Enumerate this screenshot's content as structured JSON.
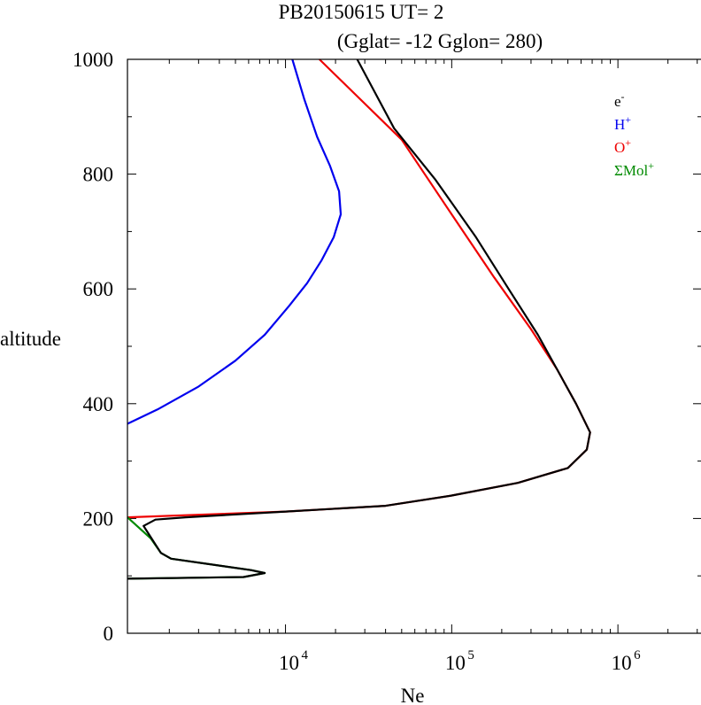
{
  "chart_data": {
    "type": "line",
    "title": "PB20150615   UT=  2",
    "subtitle": "(Gglat= -12   Gglon=  280)",
    "xlabel": "Ne",
    "ylabel": "altitude",
    "x_scale": "log",
    "xlim": [
      1120,
      3200000
    ],
    "ylim": [
      0,
      1000
    ],
    "y_ticks": [
      0,
      200,
      400,
      600,
      800,
      1000
    ],
    "y_tick_labels": [
      "0",
      "200",
      "400",
      "600",
      "800",
      "1000"
    ],
    "x_ticks": [
      10000,
      100000,
      1000000
    ],
    "x_tick_labels": [
      {
        "base": "10",
        "exp": "4"
      },
      {
        "base": "10",
        "exp": "5"
      },
      {
        "base": "10",
        "exp": "6"
      }
    ],
    "legend": {
      "placement": "top-right",
      "entries": [
        {
          "base": "e",
          "sup": "-",
          "color": "#000000"
        },
        {
          "base": "H",
          "sup": "+",
          "color": "#0000ee"
        },
        {
          "base": "O",
          "sup": "+",
          "color": "#ee0000"
        },
        {
          "base": "ΣMol",
          "sup": "+",
          "color": "#008a00"
        }
      ]
    },
    "series": [
      {
        "key": "H+",
        "color": "#0000ee",
        "points": [
          [
            1120,
            365
          ],
          [
            1700,
            390
          ],
          [
            3000,
            430
          ],
          [
            5000,
            475
          ],
          [
            7500,
            520
          ],
          [
            10500,
            570
          ],
          [
            13500,
            610
          ],
          [
            16500,
            650
          ],
          [
            19500,
            690
          ],
          [
            21500,
            730
          ],
          [
            21000,
            770
          ],
          [
            18500,
            815
          ],
          [
            15500,
            865
          ],
          [
            13000,
            930
          ],
          [
            11000,
            1000
          ]
        ]
      },
      {
        "key": "O+",
        "color": "#ee0000",
        "points": [
          [
            1120,
            202
          ],
          [
            10000,
            212
          ],
          [
            40000,
            222
          ],
          [
            100000,
            240
          ],
          [
            250000,
            262
          ],
          [
            500000,
            288
          ],
          [
            650000,
            320
          ],
          [
            680000,
            350
          ],
          [
            560000,
            400
          ],
          [
            430000,
            460
          ],
          [
            300000,
            530
          ],
          [
            180000,
            620
          ],
          [
            100000,
            730
          ],
          [
            50000,
            860
          ],
          [
            16000,
            1000
          ]
        ]
      },
      {
        "key": "Mol+",
        "color": "#008a00",
        "points": [
          [
            1120,
            202
          ],
          [
            1550,
            165
          ],
          [
            1780,
            140
          ],
          [
            2050,
            130
          ],
          [
            6200,
            110
          ],
          [
            7500,
            105
          ],
          [
            5600,
            98
          ],
          [
            1120,
            95
          ]
        ]
      },
      {
        "key": "e-",
        "color": "#000000",
        "points": [
          [
            1120,
            95
          ],
          [
            5600,
            98
          ],
          [
            7500,
            105
          ],
          [
            6200,
            110
          ],
          [
            2050,
            130
          ],
          [
            1780,
            140
          ],
          [
            1450,
            180
          ],
          [
            1400,
            187
          ],
          [
            1650,
            198
          ],
          [
            2500,
            202
          ],
          [
            10000,
            212
          ],
          [
            40000,
            222
          ],
          [
            100000,
            240
          ],
          [
            250000,
            262
          ],
          [
            500000,
            288
          ],
          [
            650000,
            320
          ],
          [
            680000,
            350
          ],
          [
            560000,
            400
          ],
          [
            430000,
            460
          ],
          [
            330000,
            520
          ],
          [
            220000,
            600
          ],
          [
            140000,
            690
          ],
          [
            80000,
            790
          ],
          [
            45000,
            880
          ],
          [
            27000,
            1000
          ]
        ]
      }
    ]
  }
}
